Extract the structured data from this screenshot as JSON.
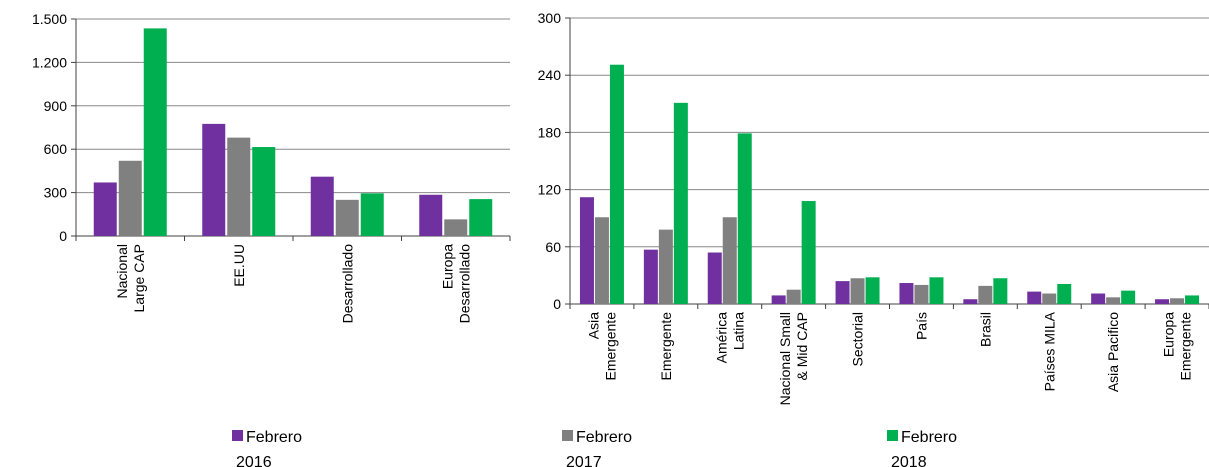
{
  "colors": {
    "2016": "#7030A0",
    "2017": "#808080",
    "2018": "#00B050",
    "axis": "#404040",
    "grid": "#888888"
  },
  "legend": [
    {
      "label_line1": "Febrero",
      "label_line2": "2016",
      "color_key": "2016"
    },
    {
      "label_line1": "Febrero",
      "label_line2": "2017",
      "color_key": "2017"
    },
    {
      "label_line1": "Febrero",
      "label_line2": "2018",
      "color_key": "2018"
    }
  ],
  "chart_data": [
    {
      "type": "bar",
      "ylim": [
        0,
        1500
      ],
      "yticks": [
        0,
        300,
        600,
        900,
        1200,
        1500
      ],
      "ytick_labels": [
        "0",
        "300",
        "600",
        "900",
        "1.200",
        "1.500"
      ],
      "categories": [
        [
          "Nacional",
          "Large CAP"
        ],
        [
          "EE.UU"
        ],
        [
          "Desarrollado"
        ],
        [
          "Europa",
          "Desarrollado"
        ]
      ],
      "series": [
        {
          "name": "Febrero 2016",
          "color_key": "2016",
          "values": [
            370,
            775,
            410,
            285
          ]
        },
        {
          "name": "Febrero 2017",
          "color_key": "2017",
          "values": [
            520,
            680,
            250,
            115
          ]
        },
        {
          "name": "Febrero 2018",
          "color_key": "2018",
          "values": [
            1435,
            615,
            295,
            255
          ]
        }
      ],
      "grid": true
    },
    {
      "type": "bar",
      "ylim": [
        0,
        300
      ],
      "yticks": [
        0,
        60,
        120,
        180,
        240,
        300
      ],
      "ytick_labels": [
        "0",
        "60",
        "120",
        "180",
        "240",
        "300"
      ],
      "categories": [
        [
          "Asia",
          "Emergente"
        ],
        [
          "Emergente"
        ],
        [
          "América",
          "Latina"
        ],
        [
          "Nacional Small",
          "& Mid CAP"
        ],
        [
          "Sectorial"
        ],
        [
          "País"
        ],
        [
          "Brasil"
        ],
        [
          "Países MILA"
        ],
        [
          "Asia Pacifico"
        ],
        [
          "Europa",
          "Emergente"
        ]
      ],
      "series": [
        {
          "name": "Febrero 2016",
          "color_key": "2016",
          "values": [
            112,
            57,
            54,
            9,
            24,
            22,
            5,
            13,
            11,
            5
          ]
        },
        {
          "name": "Febrero 2017",
          "color_key": "2017",
          "values": [
            91,
            78,
            91,
            15,
            27,
            20,
            19,
            11,
            7,
            6
          ]
        },
        {
          "name": "Febrero 2018",
          "color_key": "2018",
          "values": [
            251,
            211,
            179,
            108,
            28,
            28,
            27,
            21,
            14,
            9
          ]
        }
      ],
      "grid": true
    }
  ]
}
